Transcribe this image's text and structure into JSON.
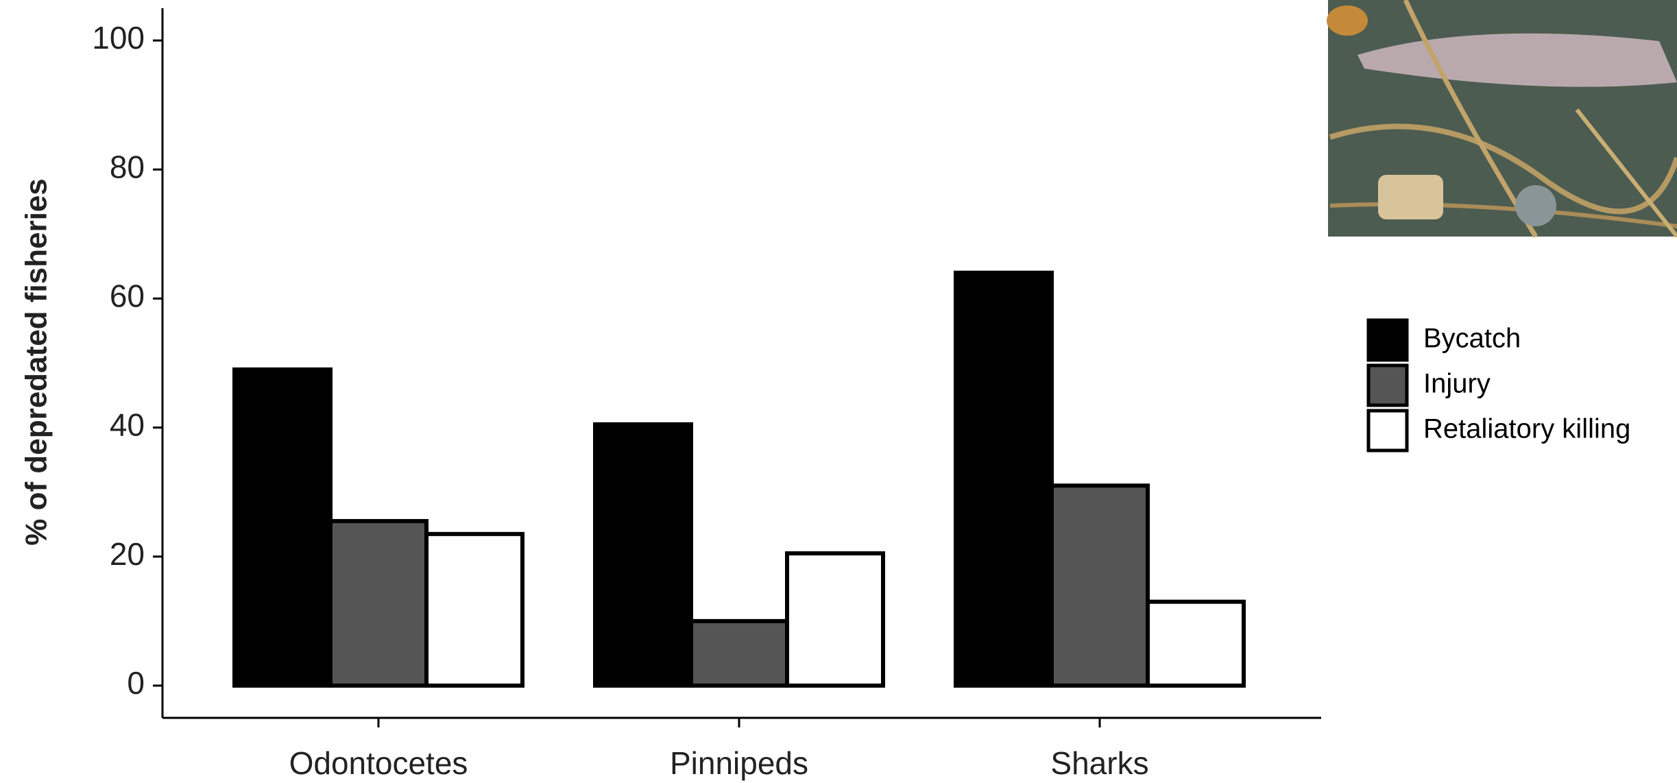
{
  "chart_data": {
    "type": "bar",
    "y_label": "% of depredated fisheries",
    "categories": [
      "Odontocetes",
      "Pinnipeds",
      "Sharks"
    ],
    "series": [
      {
        "name": "Bycatch",
        "color": "#000000",
        "values": [
          49,
          40.5,
          64
        ]
      },
      {
        "name": "Injury",
        "color": "#555555",
        "values": [
          25.5,
          10,
          31
        ]
      },
      {
        "name": "Retaliatory killing",
        "color": "#ffffff",
        "values": [
          23.5,
          20.5,
          13
        ]
      }
    ],
    "ylim": [
      -5,
      105
    ],
    "yticks": [
      0,
      20,
      40,
      60,
      80,
      100
    ],
    "grid": false,
    "legend": "right"
  }
}
